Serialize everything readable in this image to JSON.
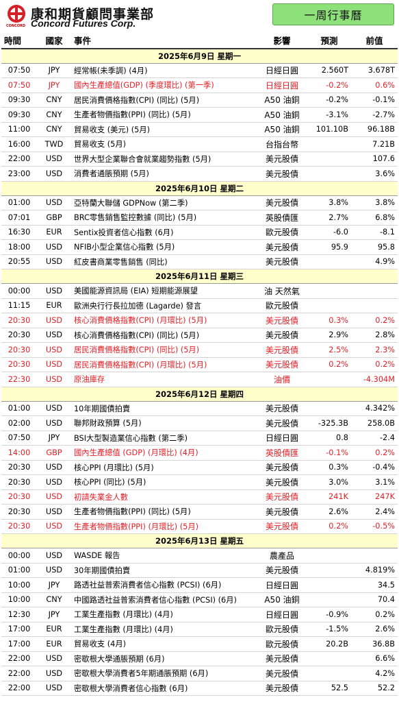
{
  "brand": {
    "name_cn": "康和期貨顧問事業部",
    "name_en": "Concord Futures Corp.",
    "mark_text": "CONCORD"
  },
  "page_title": "一周行事曆",
  "columns": [
    "時間",
    "國家",
    "事件",
    "影響",
    "預測",
    "前值"
  ],
  "days": [
    {
      "date": "2025年6月9日   星期一",
      "rows": [
        {
          "time": "07:50",
          "country": "JPY",
          "event": "經常帳(未季調) (4月)",
          "impact": "日經日圓",
          "forecast": "2.560T",
          "previous": "3.678T",
          "highlight": false
        },
        {
          "time": "07:50",
          "country": "JPY",
          "event": "國內生產總值(GDP) (季度環比) (第一季)",
          "impact": "日經日圓",
          "forecast": "-0.2%",
          "previous": "0.6%",
          "highlight": true
        },
        {
          "time": "09:30",
          "country": "CNY",
          "event": "居民消費價格指數(CPI) (同比) (5月)",
          "impact": "A50 油銅",
          "forecast": "-0.2%",
          "previous": "-0.1%",
          "highlight": false
        },
        {
          "time": "09:30",
          "country": "CNY",
          "event": "生產者物價指數(PPI) (同比) (5月)",
          "impact": "A50 油銅",
          "forecast": "-3.1%",
          "previous": "-2.7%",
          "highlight": false
        },
        {
          "time": "11:00",
          "country": "CNY",
          "event": "貿易收支 (美元) (5月)",
          "impact": "A50 油銅",
          "forecast": "101.10B",
          "previous": "96.18B",
          "highlight": false
        },
        {
          "time": "16:00",
          "country": "TWD",
          "event": "貿易收支 (5月)",
          "impact": "台指台幣",
          "forecast": "",
          "previous": "7.21B",
          "highlight": false
        },
        {
          "time": "22:00",
          "country": "USD",
          "event": "世界大型企業聯合會就業趨勢指數 (5月)",
          "impact": "美元股債",
          "forecast": "",
          "previous": "107.6",
          "highlight": false
        },
        {
          "time": "23:00",
          "country": "USD",
          "event": "消費者通脹預期 (5月)",
          "impact": "美元股債",
          "forecast": "",
          "previous": "3.6%",
          "highlight": false
        }
      ]
    },
    {
      "date": "2025年6月10日   星期二",
      "rows": [
        {
          "time": "01:00",
          "country": "USD",
          "event": "亞特蘭大聯儲 GDPNow (第二季)",
          "impact": "美元股債",
          "forecast": "3.8%",
          "previous": "3.8%",
          "highlight": false
        },
        {
          "time": "07:01",
          "country": "GBP",
          "event": "BRC零售銷售監控數據 (同比) (5月)",
          "impact": "英股債匯",
          "forecast": "2.7%",
          "previous": "6.8%",
          "highlight": false
        },
        {
          "time": "16:30",
          "country": "EUR",
          "event": "Sentix投資者信心指數 (6月)",
          "impact": "歐元股債",
          "forecast": "-6.0",
          "previous": "-8.1",
          "highlight": false
        },
        {
          "time": "18:00",
          "country": "USD",
          "event": "NFIB小型企業信心指數 (5月)",
          "impact": "美元股債",
          "forecast": "95.9",
          "previous": "95.8",
          "highlight": false
        },
        {
          "time": "20:55",
          "country": "USD",
          "event": "紅皮書商業零售銷售 (同比)",
          "impact": "美元股債",
          "forecast": "",
          "previous": "4.9%",
          "highlight": false
        }
      ]
    },
    {
      "date": "2025年6月11日   星期三",
      "rows": [
        {
          "time": "00:00",
          "country": "USD",
          "event": "美國能源資訊局 (EIA) 短期能源展望",
          "impact": "油 天然氣",
          "forecast": "",
          "previous": "",
          "highlight": false
        },
        {
          "time": "11:15",
          "country": "EUR",
          "event": "歐洲央行行長拉加德 (Lagarde) 發言",
          "impact": "歐元股債",
          "forecast": "",
          "previous": "",
          "highlight": false
        },
        {
          "time": "20:30",
          "country": "USD",
          "event": "核心消費價格指數(CPI) (月環比) (5月)",
          "impact": "美元股債",
          "forecast": "0.3%",
          "previous": "0.2%",
          "highlight": true
        },
        {
          "time": "20:30",
          "country": "USD",
          "event": "核心消費價格指數(CPI) (同比) (5月)",
          "impact": "美元股債",
          "forecast": "2.9%",
          "previous": "2.8%",
          "highlight": false
        },
        {
          "time": "20:30",
          "country": "USD",
          "event": "居民消費價格指數(CPI) (同比) (5月)",
          "impact": "美元股債",
          "forecast": "2.5%",
          "previous": "2.3%",
          "highlight": true
        },
        {
          "time": "20:30",
          "country": "USD",
          "event": "居民消費價格指數(CPI) (月環比) (5月)",
          "impact": "美元股債",
          "forecast": "0.2%",
          "previous": "0.2%",
          "highlight": true
        },
        {
          "time": "22:30",
          "country": "USD",
          "event": "原油庫存",
          "impact": "油價",
          "forecast": "",
          "previous": "-4.304M",
          "highlight": true
        }
      ]
    },
    {
      "date": "2025年6月12日   星期四",
      "rows": [
        {
          "time": "01:00",
          "country": "USD",
          "event": "10年期國債拍賣",
          "impact": "美元股債",
          "forecast": "",
          "previous": "4.342%",
          "highlight": false
        },
        {
          "time": "02:00",
          "country": "USD",
          "event": "聯邦財政預算 (5月)",
          "impact": "美元股債",
          "forecast": "-325.3B",
          "previous": "258.0B",
          "highlight": false
        },
        {
          "time": "07:50",
          "country": "JPY",
          "event": "BSI大型製造業信心指數 (第二季)",
          "impact": "日經日圓",
          "forecast": "0.8",
          "previous": "-2.4",
          "highlight": false
        },
        {
          "time": "14:00",
          "country": "GBP",
          "event": "國內生產總值 (GDP) (月環比) (4月)",
          "impact": "英股債匯",
          "forecast": "-0.1%",
          "previous": "0.2%",
          "highlight": true
        },
        {
          "time": "20:30",
          "country": "USD",
          "event": "核心PPI (月環比) (5月)",
          "impact": "美元股債",
          "forecast": "0.3%",
          "previous": "-0.4%",
          "highlight": false
        },
        {
          "time": "20:30",
          "country": "USD",
          "event": "核心PPI (同比) (5月)",
          "impact": "美元股債",
          "forecast": "3.0%",
          "previous": "3.1%",
          "highlight": false
        },
        {
          "time": "20:30",
          "country": "USD",
          "event": "初請失業金人數",
          "impact": "美元股債",
          "forecast": "241K",
          "previous": "247K",
          "highlight": true
        },
        {
          "time": "20:30",
          "country": "USD",
          "event": "生產者物價指數(PPI) (同比) (5月)",
          "impact": "美元股債",
          "forecast": "2.6%",
          "previous": "2.4%",
          "highlight": false
        },
        {
          "time": "20:30",
          "country": "USD",
          "event": "生產者物價指數(PPI) (月環比) (5月)",
          "impact": "美元股債",
          "forecast": "0.2%",
          "previous": "-0.5%",
          "highlight": true
        }
      ]
    },
    {
      "date": "2025年6月13日   星期五",
      "rows": [
        {
          "time": "00:00",
          "country": "USD",
          "event": "WASDE 報告",
          "impact": "農產品",
          "forecast": "",
          "previous": "",
          "highlight": false
        },
        {
          "time": "01:00",
          "country": "USD",
          "event": "30年期國債拍賣",
          "impact": "美元股債",
          "forecast": "",
          "previous": "4.819%",
          "highlight": false
        },
        {
          "time": "10:00",
          "country": "JPY",
          "event": "路透社益普索消費者信心指數 (PCSI) (6月)",
          "impact": "日經日圓",
          "forecast": "",
          "previous": "34.5",
          "highlight": false
        },
        {
          "time": "10:00",
          "country": "CNY",
          "event": "中國路透社益普索消費者信心指數 (PCSI) (6月)",
          "impact": "A50 油銅",
          "forecast": "",
          "previous": "70.4",
          "highlight": false
        },
        {
          "time": "12:30",
          "country": "JPY",
          "event": "工業生產指數 (月環比) (4月)",
          "impact": "日經日圓",
          "forecast": "-0.9%",
          "previous": "0.2%",
          "highlight": false
        },
        {
          "time": "17:00",
          "country": "EUR",
          "event": "工業生產指數 (月環比) (4月)",
          "impact": "歐元股債",
          "forecast": "-1.5%",
          "previous": "2.6%",
          "highlight": false
        },
        {
          "time": "17:00",
          "country": "EUR",
          "event": "貿易收支 (4月)",
          "impact": "歐元股債",
          "forecast": "20.2B",
          "previous": "36.8B",
          "highlight": false
        },
        {
          "time": "22:00",
          "country": "USD",
          "event": "密歇根大學通脹預期 (6月)",
          "impact": "美元股債",
          "forecast": "",
          "previous": "6.6%",
          "highlight": false
        },
        {
          "time": "22:00",
          "country": "USD",
          "event": "密歇根大學消費者5年期通脹預期 (6月)",
          "impact": "美元股債",
          "forecast": "",
          "previous": "4.2%",
          "highlight": false
        },
        {
          "time": "22:00",
          "country": "USD",
          "event": "密歇根大學消費者信心指數 (6月)",
          "impact": "美元股債",
          "forecast": "52.5",
          "previous": "52.2",
          "highlight": false
        }
      ]
    }
  ],
  "colors": {
    "highlight_text": "#e41e24",
    "day_band": "#ffffcc",
    "title_box": "#8ee07a",
    "brand_red": "#d61f26"
  }
}
